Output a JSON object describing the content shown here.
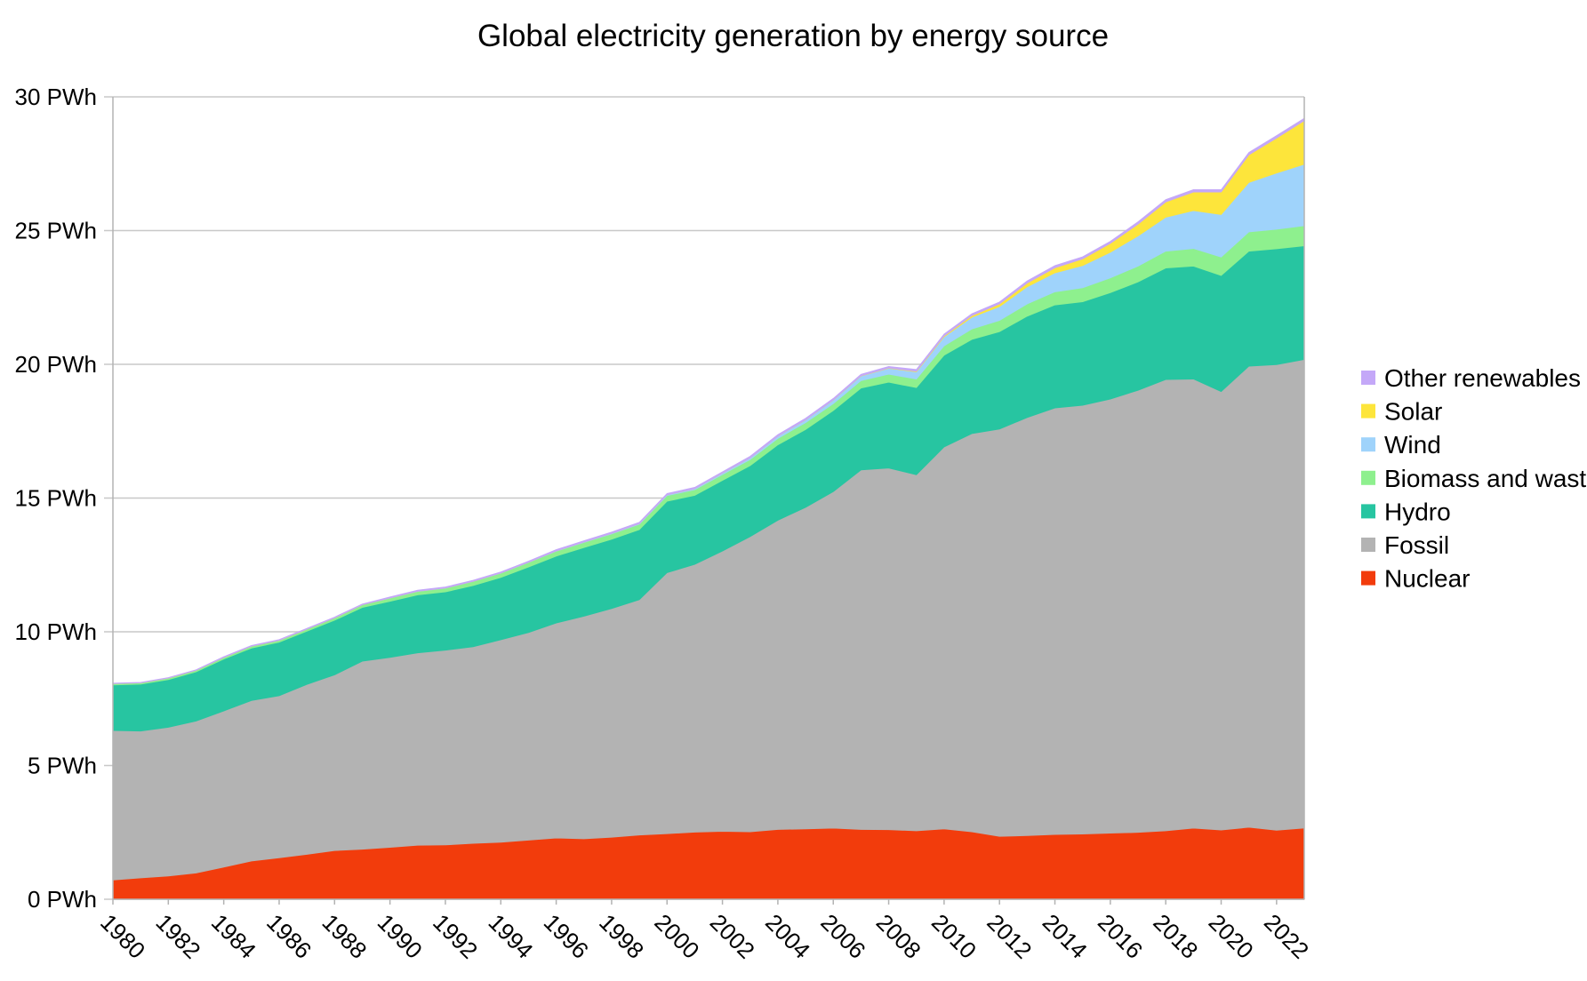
{
  "chart_data": {
    "type": "area",
    "stacked": true,
    "title": "Global electricity generation by energy source",
    "xlabel": "",
    "ylabel": "",
    "ylim": [
      0,
      30
    ],
    "y_ticks": [
      0,
      5,
      10,
      15,
      20,
      25,
      30
    ],
    "y_tick_suffix": " PWh",
    "x_tick_years": [
      1980,
      1982,
      1984,
      1986,
      1988,
      1990,
      1992,
      1994,
      1996,
      1998,
      2000,
      2002,
      2004,
      2006,
      2008,
      2010,
      2012,
      2014,
      2016,
      2018,
      2020,
      2022
    ],
    "grid": true,
    "legend_position": "right",
    "x": [
      1980,
      1981,
      1982,
      1983,
      1984,
      1985,
      1986,
      1987,
      1988,
      1989,
      1990,
      1991,
      1992,
      1993,
      1994,
      1995,
      1996,
      1997,
      1998,
      1999,
      2000,
      2001,
      2002,
      2003,
      2004,
      2005,
      2006,
      2007,
      2008,
      2009,
      2010,
      2011,
      2012,
      2013,
      2014,
      2015,
      2016,
      2017,
      2018,
      2019,
      2020,
      2021,
      2022,
      2023
    ],
    "series": [
      {
        "name": "Nuclear",
        "color": "#f23c0c",
        "values": [
          0.72,
          0.8,
          0.87,
          0.98,
          1.2,
          1.43,
          1.55,
          1.68,
          1.82,
          1.87,
          1.94,
          2.02,
          2.03,
          2.09,
          2.13,
          2.21,
          2.29,
          2.26,
          2.32,
          2.4,
          2.45,
          2.51,
          2.54,
          2.52,
          2.61,
          2.63,
          2.66,
          2.61,
          2.6,
          2.56,
          2.63,
          2.52,
          2.35,
          2.38,
          2.42,
          2.44,
          2.47,
          2.5,
          2.56,
          2.66,
          2.59,
          2.69,
          2.58,
          2.66
        ]
      },
      {
        "name": "Fossil",
        "color": "#b3b3b3",
        "values": [
          5.59,
          5.49,
          5.56,
          5.68,
          5.84,
          6.0,
          6.06,
          6.35,
          6.57,
          7.03,
          7.1,
          7.19,
          7.28,
          7.35,
          7.57,
          7.76,
          8.04,
          8.32,
          8.55,
          8.8,
          9.76,
          10.01,
          10.48,
          11.04,
          11.56,
          12.02,
          12.58,
          13.44,
          13.52,
          13.31,
          14.28,
          14.89,
          15.23,
          15.63,
          15.95,
          16.03,
          16.23,
          16.53,
          16.87,
          16.79,
          16.39,
          17.24,
          17.41,
          17.52
        ]
      },
      {
        "name": "Hydro",
        "color": "#27c5a1",
        "values": [
          1.7,
          1.75,
          1.78,
          1.84,
          1.94,
          1.96,
          2.0,
          1.99,
          2.04,
          2.01,
          2.1,
          2.17,
          2.18,
          2.29,
          2.33,
          2.45,
          2.5,
          2.57,
          2.59,
          2.62,
          2.67,
          2.58,
          2.64,
          2.65,
          2.82,
          2.91,
          3.03,
          3.06,
          3.21,
          3.26,
          3.43,
          3.52,
          3.64,
          3.79,
          3.85,
          3.87,
          3.98,
          4.05,
          4.17,
          4.22,
          4.34,
          4.3,
          4.33,
          4.25
        ]
      },
      {
        "name": "Biomass and waste",
        "color": "#8ef08e",
        "values": [
          0.05,
          0.05,
          0.06,
          0.06,
          0.06,
          0.07,
          0.07,
          0.08,
          0.09,
          0.1,
          0.12,
          0.13,
          0.14,
          0.15,
          0.16,
          0.17,
          0.18,
          0.19,
          0.2,
          0.2,
          0.21,
          0.21,
          0.22,
          0.23,
          0.24,
          0.26,
          0.26,
          0.28,
          0.3,
          0.32,
          0.35,
          0.39,
          0.42,
          0.46,
          0.49,
          0.52,
          0.55,
          0.59,
          0.63,
          0.66,
          0.69,
          0.72,
          0.73,
          0.75
        ]
      },
      {
        "name": "Wind",
        "color": "#9fd3fb",
        "values": [
          0,
          0,
          0,
          0,
          0,
          0,
          0,
          0,
          0,
          0,
          0.004,
          0.005,
          0.006,
          0.007,
          0.008,
          0.01,
          0.012,
          0.014,
          0.02,
          0.025,
          0.03,
          0.04,
          0.05,
          0.06,
          0.08,
          0.1,
          0.13,
          0.17,
          0.22,
          0.27,
          0.34,
          0.44,
          0.52,
          0.64,
          0.71,
          0.83,
          0.96,
          1.13,
          1.27,
          1.42,
          1.59,
          1.85,
          2.1,
          2.3
        ]
      },
      {
        "name": "Solar",
        "color": "#fde53b",
        "values": [
          0,
          0,
          0,
          0,
          0,
          0,
          0,
          0,
          0,
          0,
          0,
          0,
          0,
          0,
          0,
          0,
          0,
          0,
          0,
          0,
          0.001,
          0.001,
          0.002,
          0.002,
          0.003,
          0.004,
          0.005,
          0.008,
          0.012,
          0.02,
          0.032,
          0.06,
          0.1,
          0.14,
          0.19,
          0.25,
          0.33,
          0.44,
          0.57,
          0.69,
          0.84,
          1.03,
          1.31,
          1.63
        ]
      },
      {
        "name": "Other renewables",
        "color": "#c4a8f8",
        "values": [
          0.02,
          0.02,
          0.02,
          0.02,
          0.03,
          0.03,
          0.03,
          0.03,
          0.03,
          0.03,
          0.04,
          0.04,
          0.04,
          0.04,
          0.04,
          0.04,
          0.05,
          0.05,
          0.05,
          0.05,
          0.05,
          0.05,
          0.05,
          0.06,
          0.06,
          0.06,
          0.06,
          0.06,
          0.06,
          0.07,
          0.07,
          0.07,
          0.07,
          0.08,
          0.08,
          0.08,
          0.08,
          0.09,
          0.09,
          0.09,
          0.09,
          0.09,
          0.09,
          0.09
        ]
      }
    ]
  }
}
